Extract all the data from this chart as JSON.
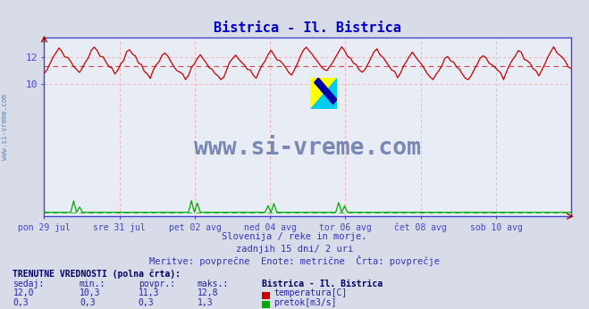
{
  "title": "Bistrica - Il. Bistrica",
  "title_color": "#0000cc",
  "bg_color": "#d8dce8",
  "plot_bg_color": "#e8ecf4",
  "grid_color": "#ffaaaa",
  "axis_color": "#4444cc",
  "x_tick_labels": [
    "pon 29 jul",
    "sre 31 jul",
    "pet 02 avg",
    "ned 04 avg",
    "tor 06 avg",
    "čet 08 avg",
    "sob 10 avg"
  ],
  "x_tick_positions": [
    0,
    24,
    48,
    72,
    96,
    120,
    144
  ],
  "y_ticks": [
    10,
    12
  ],
  "y_lim": [
    0,
    13.5
  ],
  "x_lim": [
    0,
    168
  ],
  "temp_avg": 11.3,
  "temp_min": 10.3,
  "temp_max": 12.8,
  "temp_current": 12.0,
  "flow_avg": 0.3,
  "flow_min": 0.3,
  "flow_max": 1.3,
  "flow_current": 0.3,
  "temp_line_color": "#cc0000",
  "flow_line_color": "#00aa00",
  "subtitle1": "Slovenija / reke in morje.",
  "subtitle2": "zadnjih 15 dni/ 2 uri",
  "subtitle3": "Meritve: povprečne  Enote: metrične  Črta: povprečje",
  "subtitle_color": "#3333bb",
  "watermark": "www.si-vreme.com",
  "watermark_color": "#6677aa",
  "n_points": 180,
  "ylabel_text": "www.si-vreme.com",
  "ylabel_color": "#6688aa",
  "legend_title": "Bistrica - Il. Bistrica",
  "legend_title_color": "#000066",
  "table_header_color": "#000066",
  "table_label_color": "#2222aa"
}
